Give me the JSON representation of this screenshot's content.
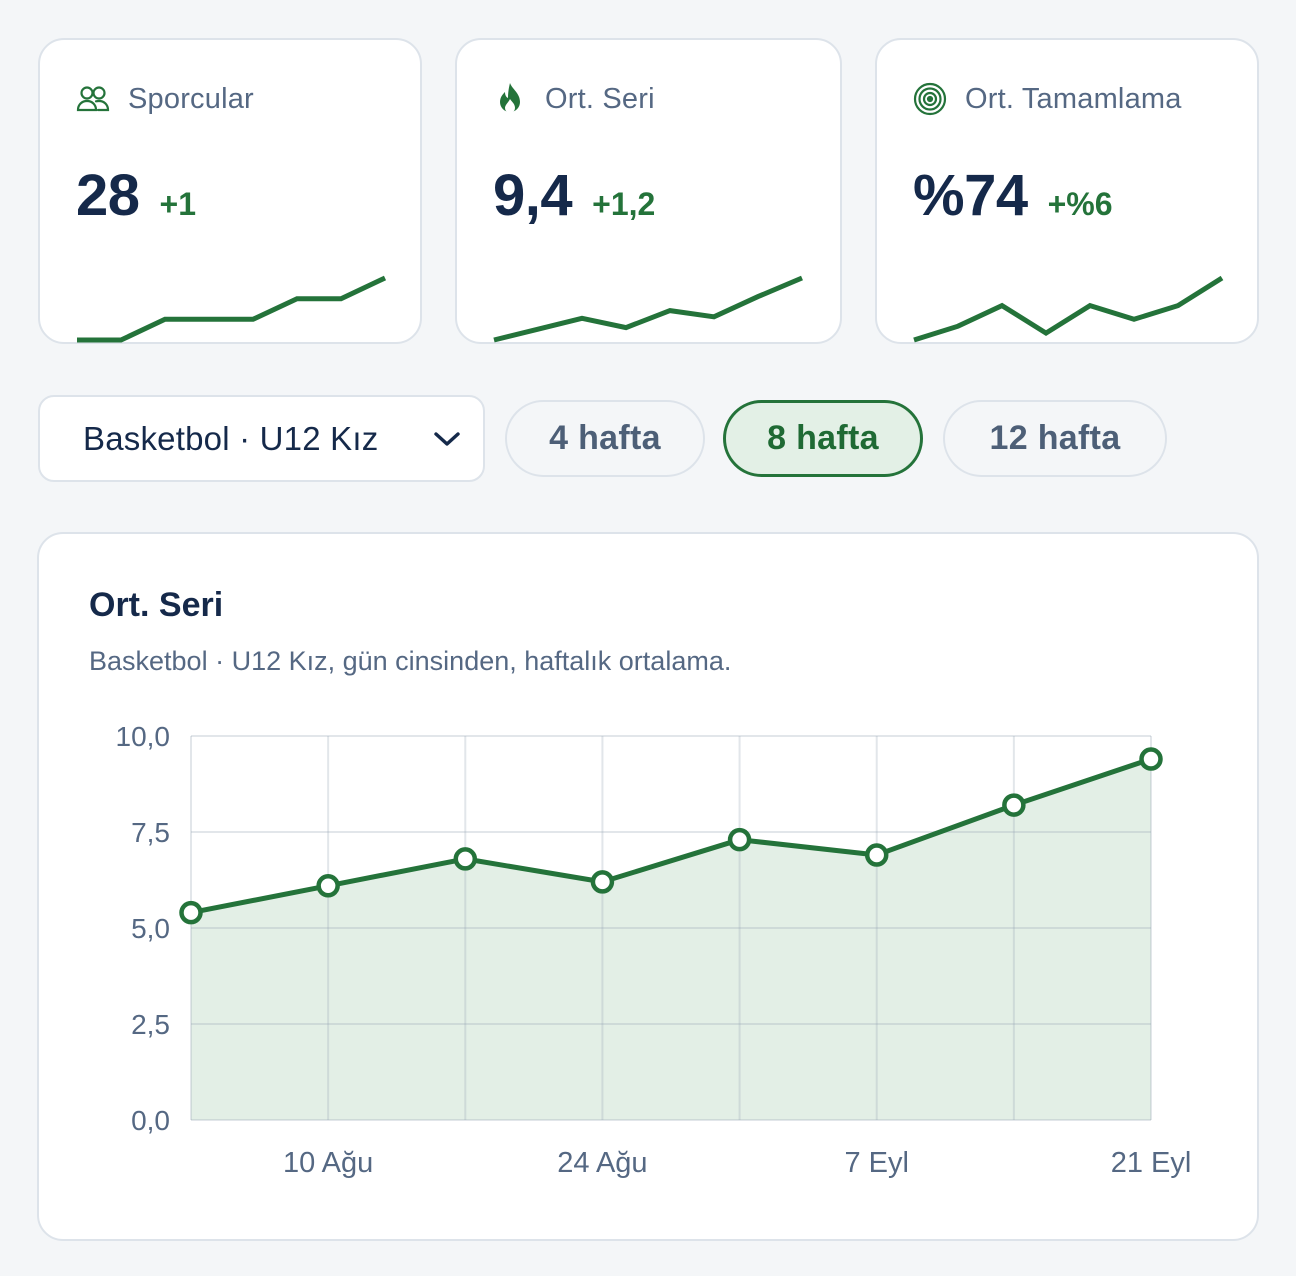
{
  "colors": {
    "accent": "#24733a",
    "accent_fill": "#e3efe6",
    "text_dark": "#15294a",
    "text_muted": "#556883",
    "border": "#dde3ea"
  },
  "stats": [
    {
      "id": "athletes",
      "icon": "users-icon",
      "label": "Sporcular",
      "value": "28",
      "delta": "+1",
      "spark": [
        0,
        0,
        1,
        1,
        1,
        2,
        2,
        3
      ]
    },
    {
      "id": "streak",
      "icon": "flame-icon",
      "label": "Ort. Seri",
      "value": "9,4",
      "delta": "+1,2",
      "spark": [
        5.4,
        6.1,
        6.8,
        6.2,
        7.3,
        6.9,
        8.2,
        9.4
      ]
    },
    {
      "id": "completion",
      "icon": "target-icon",
      "label": "Ort. Tamamlama",
      "value": "%74",
      "delta": "+%6",
      "spark": [
        65,
        67,
        70,
        66,
        70,
        68,
        70,
        74
      ]
    }
  ],
  "filter": {
    "group_select": "Basketbol · U12 Kız",
    "ranges": [
      "4 hafta",
      "8 hafta",
      "12 hafta"
    ],
    "selected_range": "8 hafta"
  },
  "chart_panel": {
    "title": "Ort. Seri",
    "subtitle": "Basketbol · U12 Kız, gün cinsinden, haftalık ortalama."
  },
  "chart_data": {
    "type": "area",
    "title": "Ort. Seri",
    "subtitle": "Basketbol · U12 Kız, gün cinsinden, haftalık ortalama.",
    "x_labels": [
      "10 Ağu",
      "24 Ağu",
      "7 Eyl",
      "21 Eyl"
    ],
    "y_ticks": [
      "0,0",
      "2,5",
      "5,0",
      "7,5",
      "10,0"
    ],
    "ylim": [
      0,
      10
    ],
    "grid": true,
    "series": [
      {
        "values": [
          5.4,
          6.1,
          6.8,
          6.2,
          7.3,
          6.9,
          8.2,
          9.4
        ]
      }
    ]
  }
}
